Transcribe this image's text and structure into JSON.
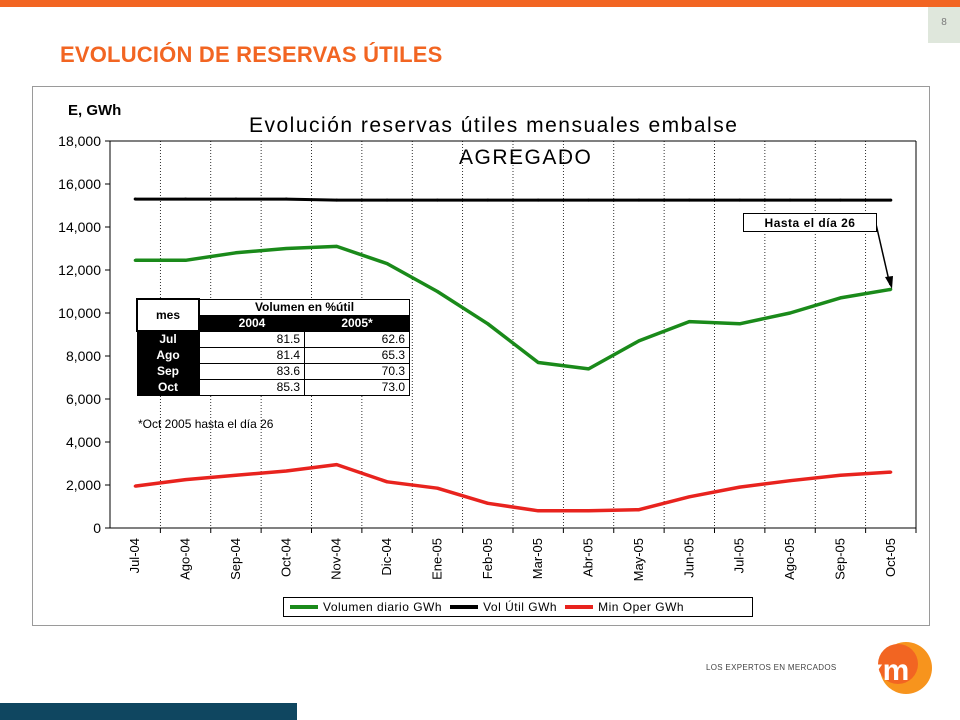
{
  "slide": {
    "page_number": "8",
    "title": "EVOLUCIÓN DE RESERVAS ÚTILES",
    "accent_color": "#f26522",
    "footer_bar_color": "#0f4660",
    "logo_tagline": "LOS EXPERTOS EN MERCADOS",
    "logo_icon": "xm-logo-icon"
  },
  "chart_data": {
    "type": "line",
    "title": "Evolución reservas útiles mensuales embalse",
    "subtitle": "AGREGADO",
    "ylabel": "E, GWh",
    "xlabel": "",
    "ylim": [
      0,
      18000
    ],
    "yticks": [
      "0",
      "2,000",
      "4,000",
      "6,000",
      "8,000",
      "10,000",
      "12,000",
      "14,000",
      "16,000",
      "18,000"
    ],
    "ytick_values": [
      0,
      2000,
      4000,
      6000,
      8000,
      10000,
      12000,
      14000,
      16000,
      18000
    ],
    "grid": "vertical",
    "categories": [
      "Jul-04",
      "Ago-04",
      "Sep-04",
      "Oct-04",
      "Nov-04",
      "Dic-04",
      "Ene-05",
      "Feb-05",
      "Mar-05",
      "Abr-05",
      "May-05",
      "Jun-05",
      "Jul-05",
      "Ago-05",
      "Sep-05",
      "Oct-05"
    ],
    "series": [
      {
        "name": "Volumen diario GWh",
        "color": "#1a8a1a",
        "values": [
          12450,
          12450,
          12800,
          13000,
          13100,
          12300,
          11000,
          9500,
          7700,
          7400,
          8700,
          9600,
          9500,
          10000,
          10700,
          11100
        ]
      },
      {
        "name": "Vol Útil GWh",
        "color": "#000000",
        "values": [
          15300,
          15300,
          15300,
          15300,
          15250,
          15250,
          15250,
          15250,
          15250,
          15250,
          15250,
          15250,
          15250,
          15250,
          15250,
          15250
        ]
      },
      {
        "name": "Min Oper GWh",
        "color": "#e8231e",
        "values": [
          1950,
          2250,
          2450,
          2650,
          2950,
          2150,
          1850,
          1150,
          800,
          800,
          850,
          1450,
          1900,
          2200,
          2450,
          2600
        ]
      }
    ],
    "legend_position": "bottom",
    "annotation": "Hasta el día 26",
    "inset_table": {
      "header_left": "mes",
      "header_group": "Volumen en %útil",
      "col_2004": "2004",
      "col_2005": "2005*",
      "rows": [
        {
          "mes": "Jul",
          "v2004": "81.5",
          "v2005": "62.6"
        },
        {
          "mes": "Ago",
          "v2004": "81.4",
          "v2005": "65.3"
        },
        {
          "mes": "Sep",
          "v2004": "83.6",
          "v2005": "70.3"
        },
        {
          "mes": "Oct",
          "v2004": "85.3",
          "v2005": "73.0"
        }
      ],
      "note": "*Oct 2005 hasta el día 26"
    }
  }
}
